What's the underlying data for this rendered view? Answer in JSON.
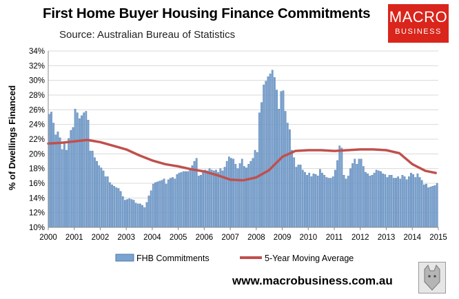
{
  "header": {
    "title": "First Home Buyer Housing Finance Commitments",
    "subtitle": "Source: Australian Bureau of Statistics"
  },
  "logo": {
    "line1": "MACRO",
    "line2": "BUSINESS",
    "color": "#d9251c"
  },
  "footer": {
    "website": "www.macrobusiness.com.au"
  },
  "chart_data": {
    "type": "bar",
    "ylabel": "% of Dwellings Financed",
    "xlabel": "",
    "ylim": [
      10,
      34
    ],
    "yticks": [
      "10%",
      "12%",
      "14%",
      "16%",
      "18%",
      "20%",
      "22%",
      "24%",
      "26%",
      "28%",
      "30%",
      "32%",
      "34%"
    ],
    "xlim": [
      2000,
      2015
    ],
    "xticks": [
      "2000",
      "2001",
      "2002",
      "2003",
      "2004",
      "2005",
      "2006",
      "2007",
      "2008",
      "2009",
      "2010",
      "2011",
      "2012",
      "2013",
      "2014",
      "2015"
    ],
    "grid": true,
    "legend_position": "bottom",
    "colors": {
      "bars": "#7ba3cf",
      "bar_edge": "#4f79ad",
      "line": "#c0504d"
    },
    "series": [
      {
        "name": "FHB Commitments",
        "type": "bar",
        "start": "2000-01",
        "frequency": "monthly",
        "values": [
          25.4,
          25.7,
          24.2,
          22.6,
          23.0,
          22.2,
          20.6,
          21.6,
          20.5,
          22.1,
          23.2,
          23.6,
          26.1,
          25.6,
          24.8,
          25.2,
          25.6,
          25.8,
          24.6,
          20.4,
          20.4,
          19.5,
          19.0,
          18.4,
          18.1,
          17.7,
          16.9,
          16.9,
          16.1,
          15.8,
          15.6,
          15.4,
          15.3,
          14.9,
          14.2,
          13.7,
          13.8,
          13.9,
          13.8,
          13.7,
          13.3,
          13.2,
          13.2,
          13.0,
          12.7,
          13.4,
          14.3,
          15.0,
          15.9,
          16.1,
          16.2,
          16.3,
          16.4,
          16.6,
          15.9,
          16.5,
          16.7,
          16.8,
          16.6,
          17.2,
          17.4,
          17.5,
          17.6,
          17.6,
          17.6,
          18.0,
          18.4,
          19.0,
          19.4,
          17.0,
          17.1,
          17.6,
          17.8,
          17.7,
          18.0,
          17.8,
          17.7,
          17.8,
          17.5,
          18.0,
          17.7,
          18.2,
          19.0,
          19.6,
          19.4,
          19.3,
          18.6,
          18.0,
          18.7,
          19.3,
          18.3,
          18.1,
          18.6,
          19.0,
          19.4,
          20.5,
          20.2,
          25.6,
          27.0,
          29.4,
          29.9,
          30.5,
          30.9,
          31.4,
          30.4,
          28.7,
          26.1,
          28.5,
          28.6,
          25.8,
          24.2,
          23.3,
          20.5,
          19.5,
          18.2,
          18.5,
          18.5,
          17.8,
          17.5,
          17.1,
          17.4,
          16.9,
          17.3,
          17.2,
          17.0,
          17.9,
          17.4,
          17.1,
          16.8,
          16.7,
          16.7,
          16.9,
          17.8,
          19.1,
          21.1,
          20.8,
          17.1,
          16.6,
          17.0,
          18.0,
          18.7,
          19.3,
          18.6,
          19.3,
          19.3,
          18.3,
          17.5,
          17.3,
          17.0,
          17.1,
          17.4,
          17.8,
          17.7,
          17.6,
          17.3,
          17.2,
          16.8,
          17.1,
          17.1,
          16.7,
          16.7,
          16.9,
          16.6,
          17.1,
          16.9,
          16.5,
          16.9,
          17.4,
          17.2,
          16.8,
          17.3,
          16.8,
          16.4,
          15.8,
          15.9,
          15.4,
          15.5,
          15.6,
          15.7,
          16.0
        ]
      },
      {
        "name": "5-Year Moving Average",
        "type": "line",
        "points": [
          [
            2000.0,
            21.4
          ],
          [
            2000.5,
            21.5
          ],
          [
            2001.0,
            21.7
          ],
          [
            2001.5,
            21.9
          ],
          [
            2002.0,
            21.6
          ],
          [
            2002.5,
            21.1
          ],
          [
            2003.0,
            20.6
          ],
          [
            2003.5,
            19.8
          ],
          [
            2004.0,
            19.1
          ],
          [
            2004.5,
            18.6
          ],
          [
            2005.0,
            18.3
          ],
          [
            2005.5,
            17.9
          ],
          [
            2006.0,
            17.6
          ],
          [
            2006.5,
            17.1
          ],
          [
            2007.0,
            16.5
          ],
          [
            2007.5,
            16.4
          ],
          [
            2008.0,
            16.8
          ],
          [
            2008.5,
            17.8
          ],
          [
            2009.0,
            19.6
          ],
          [
            2009.5,
            20.4
          ],
          [
            2010.0,
            20.5
          ],
          [
            2010.5,
            20.5
          ],
          [
            2011.0,
            20.4
          ],
          [
            2011.5,
            20.5
          ],
          [
            2012.0,
            20.6
          ],
          [
            2012.5,
            20.6
          ],
          [
            2013.0,
            20.5
          ],
          [
            2013.5,
            20.1
          ],
          [
            2014.0,
            18.6
          ],
          [
            2014.5,
            17.7
          ],
          [
            2014.9,
            17.4
          ]
        ]
      }
    ]
  }
}
